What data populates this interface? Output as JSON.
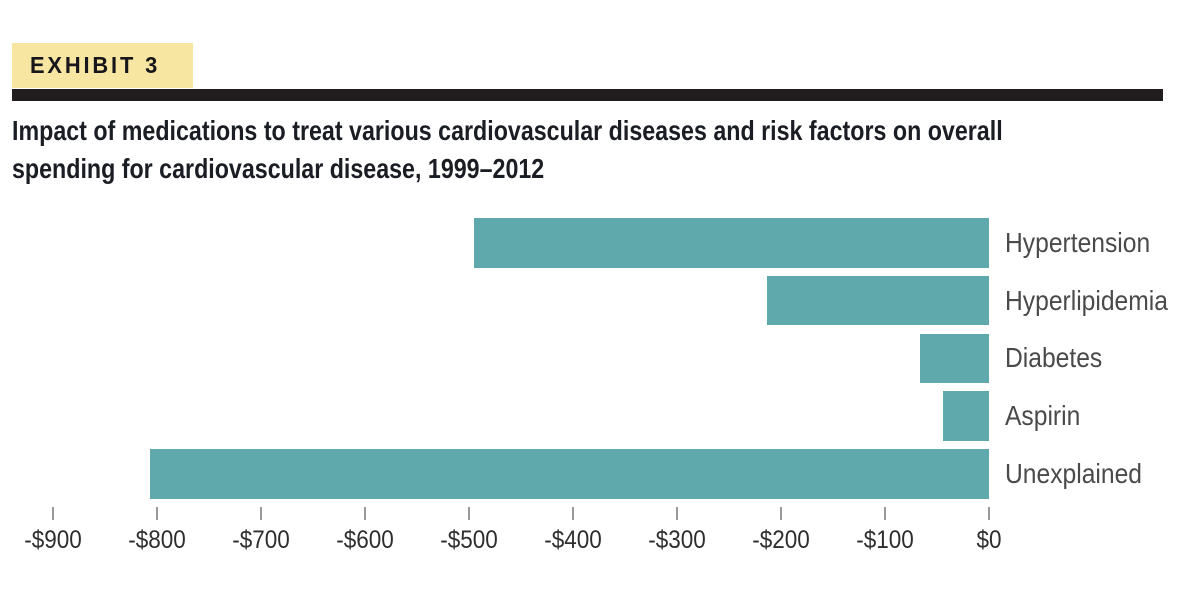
{
  "exhibit": {
    "label": "EXHIBIT 3"
  },
  "title_line1": "Impact of medications to treat various cardiovascular diseases and risk factors on overall",
  "title_line2": "spending for cardiovascular disease, 1999–2012",
  "colors": {
    "bar_fill": "#5FA8AC",
    "exhibit_bg": "#F7E6A2",
    "rule": "#211D1E",
    "title_text": "#1B1D24",
    "exhibit_text": "#17161A",
    "category_text": "#4A4A4A",
    "tick_mark": "#999999",
    "tick_text": "#2E2E2E"
  },
  "chart_data": {
    "type": "bar",
    "orientation": "horizontal",
    "title": "Impact of medications to treat various cardiovascular diseases and risk factors on overall spending for cardiovascular disease, 1999–2012",
    "categories": [
      "Hypertension",
      "Hyperlipidemia",
      "Diabetes",
      "Aspirin",
      "Unexplained"
    ],
    "values": [
      -495,
      -213,
      -66,
      -44,
      -806
    ],
    "value_unit": "dollars",
    "xlim": [
      -900,
      0
    ],
    "x_ticks": [
      {
        "value": -900,
        "label": "-$900"
      },
      {
        "value": -800,
        "label": "-$800"
      },
      {
        "value": -700,
        "label": "-$700"
      },
      {
        "value": -600,
        "label": "-$600"
      },
      {
        "value": -500,
        "label": "-$500"
      },
      {
        "value": -400,
        "label": "-$400"
      },
      {
        "value": -300,
        "label": "-$300"
      },
      {
        "value": -200,
        "label": "-$200"
      },
      {
        "value": -100,
        "label": "-$100"
      },
      {
        "value": 0,
        "label": "$0"
      }
    ],
    "grid": false,
    "legend": false,
    "bar_color": "#5FA8AC"
  }
}
